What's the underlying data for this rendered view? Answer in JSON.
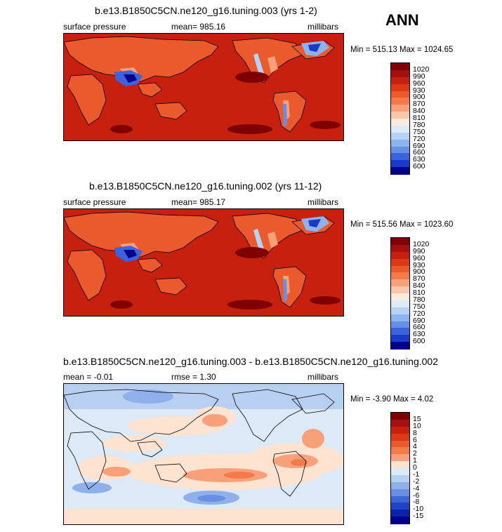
{
  "season": "ANN",
  "panels": [
    {
      "title": "b.e13.B1850C5CN.ne120_g16.tuning.003 (yrs 1-2)",
      "left_label": "surface pressure",
      "center_label": "mean= 985.16",
      "right_label": "millibars",
      "minmax": "Min = 515.13 Max = 1024.65",
      "kind": "abs"
    },
    {
      "title": "b.e13.B1850C5CN.ne120_g16.tuning.002 (yrs 11-12)",
      "left_label": "surface pressure",
      "center_label": "mean= 985.17",
      "right_label": "millibars",
      "minmax": "Min = 515.56 Max = 1023.60",
      "kind": "abs"
    },
    {
      "title": "b.e13.B1850C5CN.ne120_g16.tuning.003 - b.e13.B1850C5CN.ne120_g16.tuning.002",
      "left_label": "mean =   -0.01",
      "center_label": "rmse =    1.30",
      "right_label": "millibars",
      "minmax": "Min =  -3.90 Max =    4.02",
      "kind": "diff"
    }
  ],
  "legends": {
    "abs": {
      "labels": [
        "1020",
        "990",
        "960",
        "930",
        "900",
        "870",
        "840",
        "810",
        "780",
        "750",
        "720",
        "690",
        "660",
        "630",
        "600"
      ],
      "colors": [
        "#7f0000",
        "#a50f0f",
        "#c8200e",
        "#dc3a17",
        "#ea5a2c",
        "#f37b4a",
        "#f8a07a",
        "#fbc7aa",
        "#fdebdc",
        "#dcebfa",
        "#b5d3f5",
        "#8db4ee",
        "#6590e6",
        "#3b63dc",
        "#1a3ac9",
        "#00008b"
      ]
    },
    "diff": {
      "labels": [
        "15",
        "10",
        "8",
        "6",
        "4",
        "2",
        "1",
        "0",
        "-1",
        "-2",
        "-4",
        "-6",
        "-8",
        "-10",
        "-15"
      ],
      "colors": [
        "#7f0000",
        "#a50f0f",
        "#c8200e",
        "#dc3a17",
        "#ea5a2c",
        "#f37b4a",
        "#f8a07a",
        "#fde3d0",
        "#dce9f7",
        "#b7cff1",
        "#8fb0ea",
        "#6a8fe2",
        "#3f66d6",
        "#1f42c6",
        "#0b22a8",
        "#00008b"
      ]
    }
  }
}
